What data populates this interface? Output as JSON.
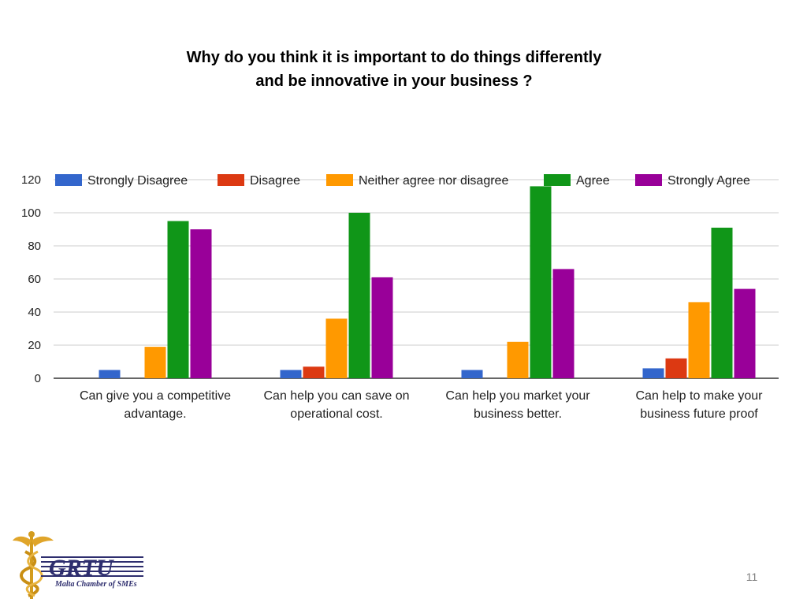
{
  "slide": {
    "title_line1": "Why do you think it is important to do things differently",
    "title_line2": "and be innovative in your business ?",
    "page_number": "11",
    "logo": {
      "name": "GRTU",
      "tagline": "Malta Chamber of SMEs",
      "icon": "caduceus-icon"
    }
  },
  "chart_data": {
    "type": "bar",
    "title": "",
    "xlabel": "",
    "ylabel": "",
    "ylim": [
      0,
      120
    ],
    "yticks": [
      0,
      20,
      40,
      60,
      80,
      100,
      120
    ],
    "grid": true,
    "legend_position": "top",
    "categories": [
      [
        "Can give you a competitive",
        "advantage."
      ],
      [
        "Can help you can save on",
        "operational cost."
      ],
      [
        "Can help you market your",
        "business better."
      ],
      [
        "Can help to make your",
        "business future proof"
      ]
    ],
    "series": [
      {
        "name": "Strongly Disagree",
        "color": "#3366cc",
        "values": [
          5,
          5,
          5,
          6
        ]
      },
      {
        "name": "Disagree",
        "color": "#dc3912",
        "values": [
          0,
          7,
          0,
          12
        ]
      },
      {
        "name": "Neither agree nor disagree",
        "color": "#ff9900",
        "values": [
          19,
          36,
          22,
          46
        ]
      },
      {
        "name": "Agree",
        "color": "#109618",
        "values": [
          95,
          100,
          116,
          91
        ]
      },
      {
        "name": "Strongly Agree",
        "color": "#990099",
        "values": [
          90,
          61,
          66,
          54
        ]
      }
    ]
  }
}
